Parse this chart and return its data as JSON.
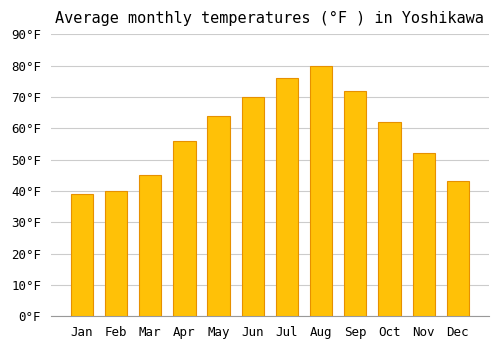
{
  "title": "Average monthly temperatures (°F ) in Yoshikawa",
  "months": [
    "Jan",
    "Feb",
    "Mar",
    "Apr",
    "May",
    "Jun",
    "Jul",
    "Aug",
    "Sep",
    "Oct",
    "Nov",
    "Dec"
  ],
  "values": [
    39,
    40,
    45,
    56,
    64,
    70,
    76,
    80,
    72,
    62,
    52,
    43
  ],
  "bar_color_top": "#FFC107",
  "bar_color_bottom": "#FFB300",
  "ylim": [
    0,
    90
  ],
  "yticks": [
    0,
    10,
    20,
    30,
    40,
    50,
    60,
    70,
    80,
    90
  ],
  "background_color": "#FFFFFF",
  "grid_color": "#CCCCCC",
  "title_fontsize": 11,
  "tick_fontsize": 9,
  "bar_edge_color": "#E69000"
}
